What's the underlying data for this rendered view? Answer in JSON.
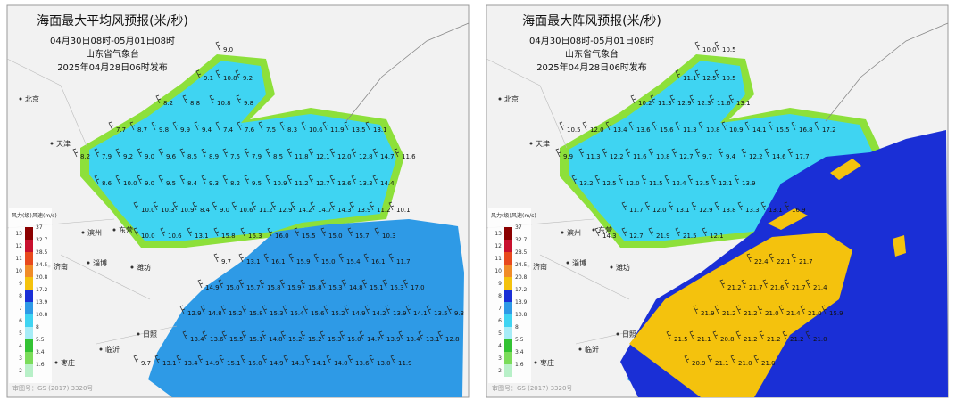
{
  "legend": {
    "level_header": "风力(级)",
    "speed_header": "风速(m/s)",
    "levels": [
      "13",
      "12",
      "11",
      "10",
      "9",
      "8",
      "7",
      "6",
      "5",
      "4",
      "3",
      "2"
    ],
    "speeds": [
      "37",
      "32.7",
      "28.5",
      "24.5",
      "20.8",
      "17.2",
      "13.9",
      "10.8",
      "8",
      "5.5",
      "3.4",
      "1.6"
    ]
  },
  "panels": [
    {
      "title": "海面最大平均风预报(米/秒)",
      "time_range": "04月30日08时-05月01日08时",
      "issuer": "山东省气象台",
      "issued": "2025年04月28日06时发布",
      "approval": "审图号：GS (2017) 3320号",
      "cities": [
        "北京",
        "天津",
        "滨州",
        "东营",
        "淄博",
        "济南",
        "潍坊",
        "日照",
        "临沂",
        "枣庄"
      ],
      "values": [
        [
          "9.0"
        ],
        [
          "9.1",
          "10.8",
          "9.2"
        ],
        [
          "8.2",
          "8.8",
          "10.8",
          "9.8"
        ],
        [
          "7.7",
          "8.7",
          "9.8",
          "9.9",
          "9.4",
          "7.4",
          "7.6",
          "7.5",
          "8.3",
          "10.6",
          "11.9",
          "13.5",
          "13.1"
        ],
        [
          "8.2",
          "7.9",
          "9.2",
          "9.0",
          "9.6",
          "8.5",
          "8.9",
          "7.5",
          "7.9",
          "8.5",
          "11.8",
          "12.1",
          "12.0",
          "12.8",
          "14.7",
          "11.6"
        ],
        [
          "8.6",
          "10.0",
          "9.0",
          "9.5",
          "8.4",
          "9.3",
          "8.2",
          "9.5",
          "10.9",
          "11.2",
          "12.7",
          "13.6",
          "13.3",
          "14.4"
        ],
        [
          "10.0",
          "10.3",
          "10.9",
          "8.4",
          "9.0",
          "10.6",
          "11.2",
          "12.9",
          "14.2",
          "14.7",
          "14.3",
          "13.9",
          "11.2",
          "10.1"
        ],
        [
          "10.0",
          "10.6",
          "13.1",
          "15.8",
          "16.3",
          "16.0",
          "15.5",
          "15.0",
          "15.7",
          "10.3"
        ],
        [
          "9.7",
          "13.1",
          "16.1",
          "15.9",
          "15.0",
          "15.4",
          "16.1",
          "11.7"
        ],
        [
          "14.9",
          "15.0",
          "15.7",
          "15.8",
          "15.9",
          "15.8",
          "15.3",
          "14.8",
          "15.1",
          "15.3",
          "17.0"
        ],
        [
          "12.9",
          "14.8",
          "15.2",
          "15.8",
          "15.3",
          "15.4",
          "15.6",
          "15.2",
          "14.9",
          "14.2",
          "13.9",
          "14.1",
          "13.5",
          "9.3"
        ],
        [
          "13.4",
          "13.6",
          "15.5",
          "15.1",
          "14.8",
          "15.2",
          "15.2",
          "15.3",
          "15.0",
          "14.7",
          "13.9",
          "13.4",
          "13.1",
          "12.8"
        ],
        [
          "9.7",
          "13.1",
          "13.4",
          "14.9",
          "15.1",
          "15.0",
          "14.9",
          "14.3",
          "14.1",
          "14.0",
          "13.6",
          "13.0",
          "11.9"
        ]
      ]
    },
    {
      "title": "海面最大阵风预报(米/秒)",
      "time_range": "04月30日08时-05月01日08时",
      "issuer": "山东省气象台",
      "issued": "2025年04月28日06时发布",
      "approval": "审图号：GS (2017) 3320号",
      "cities": [
        "北京",
        "天津",
        "滨州",
        "东营",
        "淄博",
        "济南",
        "潍坊",
        "日照",
        "临沂",
        "枣庄"
      ],
      "values": [
        [
          "10.0",
          "10.5"
        ],
        [
          "11.1",
          "12.5",
          "10.5"
        ],
        [
          "10.2",
          "11.3",
          "12.9",
          "12.3",
          "11.6",
          "13.1"
        ],
        [
          "10.5",
          "12.0",
          "13.4",
          "13.6",
          "15.6",
          "11.3",
          "10.8",
          "10.9",
          "14.1",
          "15.5",
          "16.8",
          "17.2"
        ],
        [
          "9.9",
          "11.3",
          "12.2",
          "11.6",
          "10.8",
          "12.7",
          "9.7",
          "9.4",
          "12.2",
          "14.6",
          "17.7"
        ],
        [
          "13.2",
          "12.5",
          "12.0",
          "11.5",
          "12.4",
          "13.5",
          "12.1",
          "13.9"
        ],
        [
          "11.7",
          "12.0",
          "13.1",
          "12.9",
          "13.8",
          "13.3",
          "13.1",
          "16.9"
        ],
        [
          "14.3",
          "12.7",
          "21.9",
          "21.5",
          "12.1"
        ],
        [
          "22.4",
          "22.1",
          "21.7"
        ],
        [
          "21.2",
          "21.7",
          "21.6",
          "21.7",
          "21.4"
        ],
        [
          "21.9",
          "21.2",
          "21.2",
          "21.0",
          "21.4",
          "21.0",
          "15.9"
        ],
        [
          "21.5",
          "21.1",
          "20.8",
          "21.2",
          "21.2",
          "21.2",
          "21.0"
        ],
        [
          "20.9",
          "21.1",
          "21.0",
          "21.0"
        ]
      ]
    }
  ]
}
